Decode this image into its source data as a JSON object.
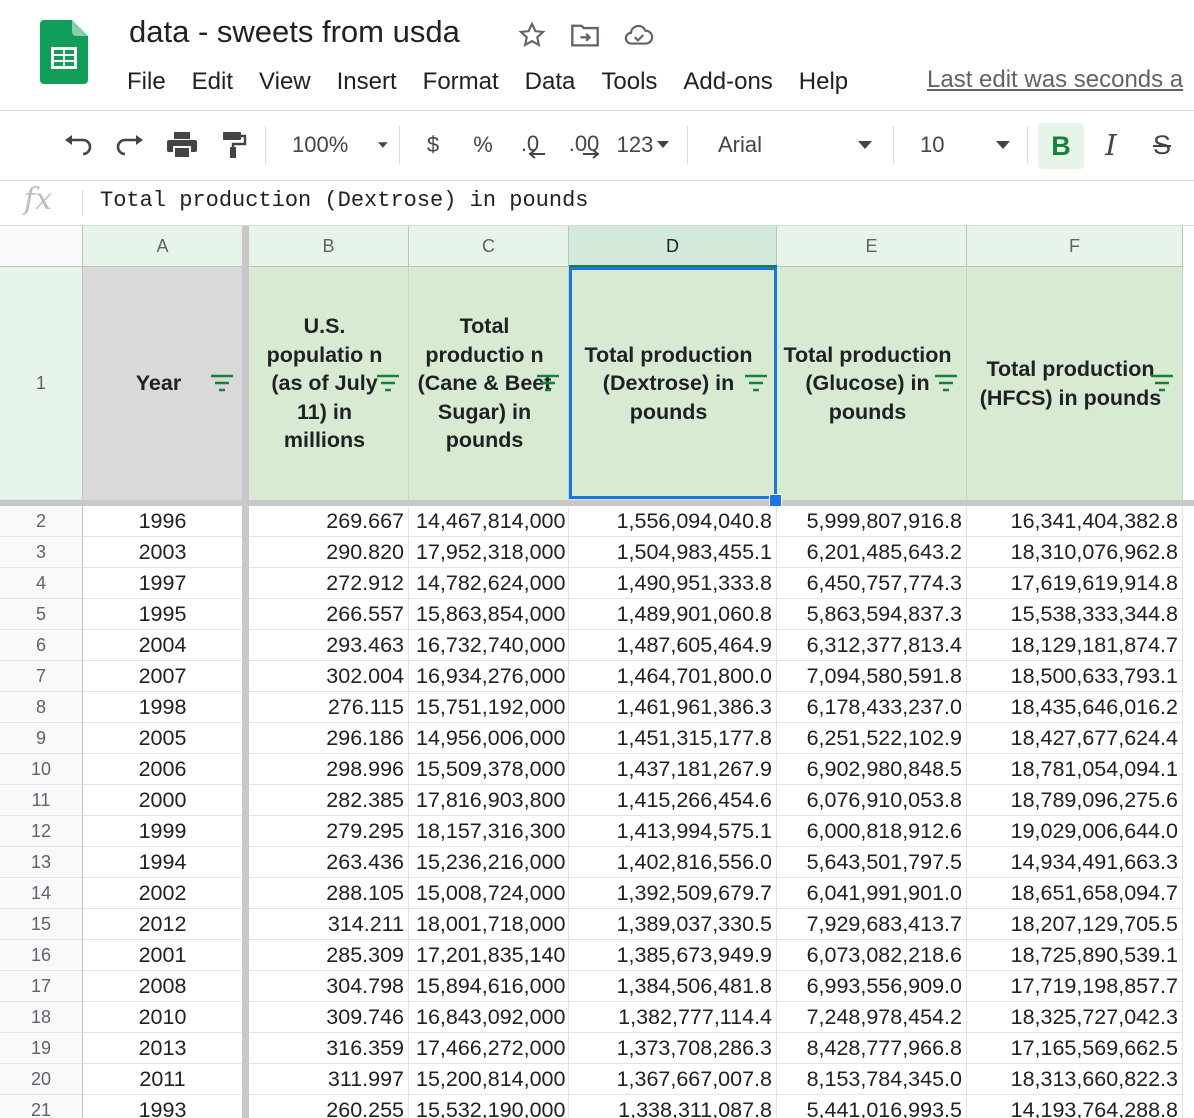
{
  "title": "data - sweets from usda",
  "title_icons": [
    "star-icon",
    "move-to-folder-icon",
    "cloud-status-icon"
  ],
  "menu": [
    "File",
    "Edit",
    "View",
    "Insert",
    "Format",
    "Data",
    "Tools",
    "Add-ons",
    "Help"
  ],
  "last_edit": "Last edit was seconds a",
  "toolbar": {
    "zoom": "100%",
    "currency": "$",
    "percent": "%",
    "decrease_decimal": ".0",
    "increase_decimal": ".00",
    "more_formats": "123",
    "font": "Arial",
    "font_size": "10",
    "bold": "B",
    "italic": "I",
    "strike": "S"
  },
  "formula_bar": {
    "label": "fx",
    "content": "Total production (Dextrose) in pounds"
  },
  "columns": [
    "A",
    "B",
    "C",
    "D",
    "E",
    "F"
  ],
  "header_row_number": "1",
  "headers": [
    "Year",
    "U.S. populatio n (as of July 11) in millions",
    "Total productio n (Cane & Beet Sugar) in pounds",
    "Total production (Dextrose) in pounds",
    "Total production (Glucose) in pounds",
    "Total production (HFCS) in pounds"
  ],
  "rows": [
    {
      "n": "2",
      "cells": [
        "1996",
        "269.667",
        "14,467,814,000",
        "1,556,094,040.8",
        "5,999,807,916.8",
        "16,341,404,382.8"
      ]
    },
    {
      "n": "3",
      "cells": [
        "2003",
        "290.820",
        "17,952,318,000",
        "1,504,983,455.1",
        "6,201,485,643.2",
        "18,310,076,962.8"
      ]
    },
    {
      "n": "4",
      "cells": [
        "1997",
        "272.912",
        "14,782,624,000",
        "1,490,951,333.8",
        "6,450,757,774.3",
        "17,619,619,914.8"
      ]
    },
    {
      "n": "5",
      "cells": [
        "1995",
        "266.557",
        "15,863,854,000",
        "1,489,901,060.8",
        "5,863,594,837.3",
        "15,538,333,344.8"
      ]
    },
    {
      "n": "6",
      "cells": [
        "2004",
        "293.463",
        "16,732,740,000",
        "1,487,605,464.9",
        "6,312,377,813.4",
        "18,129,181,874.7"
      ]
    },
    {
      "n": "7",
      "cells": [
        "2007",
        "302.004",
        "16,934,276,000",
        "1,464,701,800.0",
        "7,094,580,591.8",
        "18,500,633,793.1"
      ]
    },
    {
      "n": "8",
      "cells": [
        "1998",
        "276.115",
        "15,751,192,000",
        "1,461,961,386.3",
        "6,178,433,237.0",
        "18,435,646,016.2"
      ]
    },
    {
      "n": "9",
      "cells": [
        "2005",
        "296.186",
        "14,956,006,000",
        "1,451,315,177.8",
        "6,251,522,102.9",
        "18,427,677,624.4"
      ]
    },
    {
      "n": "10",
      "cells": [
        "2006",
        "298.996",
        "15,509,378,000",
        "1,437,181,267.9",
        "6,902,980,848.5",
        "18,781,054,094.1"
      ]
    },
    {
      "n": "11",
      "cells": [
        "2000",
        "282.385",
        "17,816,903,800",
        "1,415,266,454.6",
        "6,076,910,053.8",
        "18,789,096,275.6"
      ]
    },
    {
      "n": "12",
      "cells": [
        "1999",
        "279.295",
        "18,157,316,300",
        "1,413,994,575.1",
        "6,000,818,912.6",
        "19,029,006,644.0"
      ]
    },
    {
      "n": "13",
      "cells": [
        "1994",
        "263.436",
        "15,236,216,000",
        "1,402,816,556.0",
        "5,643,501,797.5",
        "14,934,491,663.3"
      ]
    },
    {
      "n": "14",
      "cells": [
        "2002",
        "288.105",
        "15,008,724,000",
        "1,392,509,679.7",
        "6,041,991,901.0",
        "18,651,658,094.7"
      ]
    },
    {
      "n": "15",
      "cells": [
        "2012",
        "314.211",
        "18,001,718,000",
        "1,389,037,330.5",
        "7,929,683,413.7",
        "18,207,129,705.5"
      ]
    },
    {
      "n": "16",
      "cells": [
        "2001",
        "285.309",
        "17,201,835,140",
        "1,385,673,949.9",
        "6,073,082,218.6",
        "18,725,890,539.1"
      ]
    },
    {
      "n": "17",
      "cells": [
        "2008",
        "304.798",
        "15,894,616,000",
        "1,384,506,481.8",
        "6,993,556,909.0",
        "17,719,198,857.7"
      ]
    },
    {
      "n": "18",
      "cells": [
        "2010",
        "309.746",
        "16,843,092,000",
        "1,382,777,114.4",
        "7,248,978,454.2",
        "18,325,727,042.3"
      ]
    },
    {
      "n": "19",
      "cells": [
        "2013",
        "316.359",
        "17,466,272,000",
        "1,373,708,286.3",
        "8,428,777,966.8",
        "17,165,569,662.5"
      ]
    },
    {
      "n": "20",
      "cells": [
        "2011",
        "311.997",
        "15,200,814,000",
        "1,367,667,007.8",
        "8,153,784,345.0",
        "18,313,660,822.3"
      ]
    },
    {
      "n": "21",
      "cells": [
        "1993",
        "260.255",
        "15,532,190,000",
        "1,338,311,087.8",
        "5,441,016,993.5",
        "14,193,764,288.8"
      ]
    }
  ],
  "colors": {
    "header_fill": "#d9ead3",
    "year_header_fill": "#d9d9d9",
    "selection": "#1a73e8",
    "sheets_green": "#0f9d58"
  }
}
